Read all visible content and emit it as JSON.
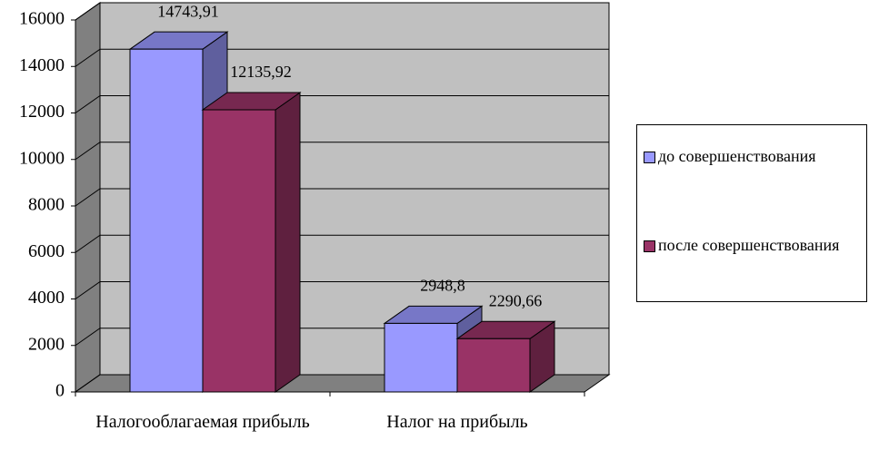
{
  "chart_data": {
    "type": "bar3d",
    "categories": [
      "Налогооблагаемая прибыль",
      "Налог на прибыль"
    ],
    "series": [
      {
        "name": "до совершенствования",
        "color": "#9999ff",
        "values": [
          14743.91,
          2948.8
        ],
        "value_labels": [
          "14743,91",
          "2948,8"
        ]
      },
      {
        "name": "после совершенствования",
        "color": "#993366",
        "values": [
          12135.92,
          2290.66
        ],
        "value_labels": [
          "12135,92",
          "2290,66"
        ]
      }
    ],
    "ylim": [
      0,
      16000
    ],
    "yticks": [
      0,
      2000,
      4000,
      6000,
      8000,
      10000,
      12000,
      14000,
      16000
    ],
    "grid": true,
    "legend": "right"
  }
}
